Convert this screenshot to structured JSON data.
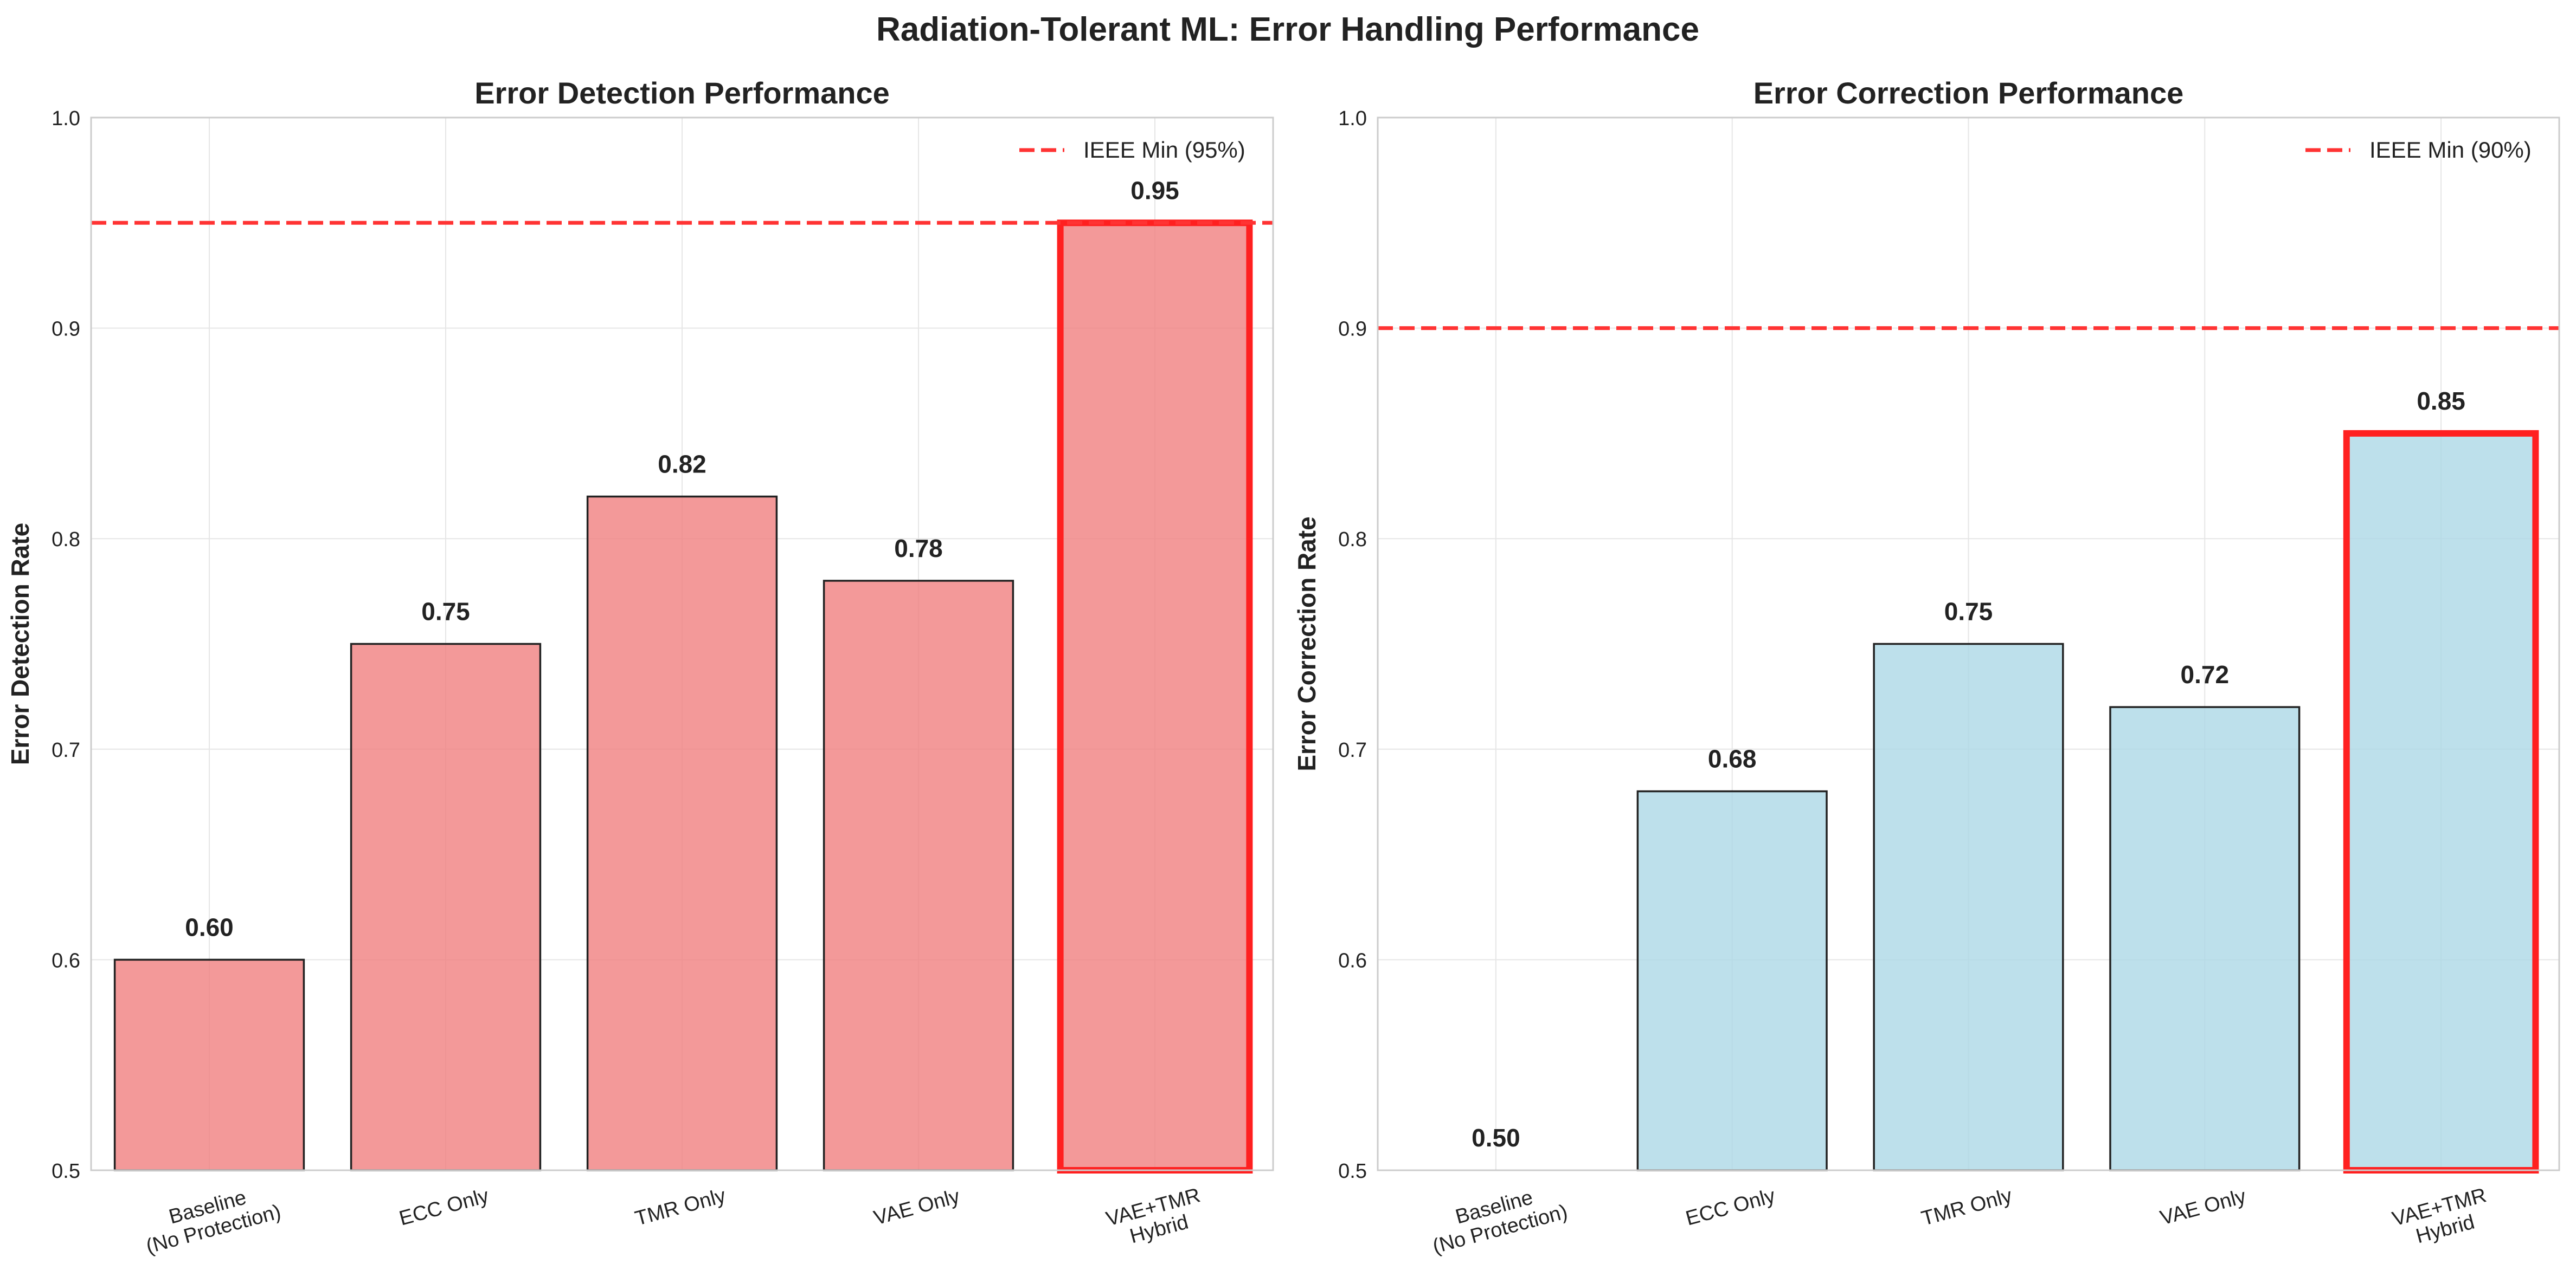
{
  "figure": {
    "suptitle": "Radiation-Tolerant ML: Error Handling Performance"
  },
  "chart_data": [
    {
      "type": "bar",
      "title": "Error Detection Performance",
      "xlabel": "",
      "ylabel": "Error Detection Rate",
      "categories": [
        "Baseline\n(No Protection)",
        "ECC Only",
        "TMR Only",
        "VAE Only",
        "VAE+TMR\nHybrid"
      ],
      "values": [
        0.6,
        0.75,
        0.82,
        0.78,
        0.95
      ],
      "value_labels": [
        "0.60",
        "0.75",
        "0.82",
        "0.78",
        "0.95"
      ],
      "highlight_index": 4,
      "bar_color": "#f08080",
      "highlight_edge_color": "#ff2020",
      "ylim": [
        0.5,
        1.0
      ],
      "yticks": [
        0.5,
        0.6,
        0.7,
        0.8,
        0.9,
        1.0
      ],
      "ytick_labels": [
        "0.5",
        "0.6",
        "0.7",
        "0.8",
        "0.9",
        "1.0"
      ],
      "threshold": {
        "value": 0.95,
        "label": "IEEE Min (95%)",
        "color": "#ff3333"
      },
      "grid": true,
      "legend_position": "top-right"
    },
    {
      "type": "bar",
      "title": "Error Correction Performance",
      "xlabel": "",
      "ylabel": "Error Correction Rate",
      "categories": [
        "Baseline\n(No Protection)",
        "ECC Only",
        "TMR Only",
        "VAE Only",
        "VAE+TMR\nHybrid"
      ],
      "values": [
        0.5,
        0.68,
        0.75,
        0.72,
        0.85
      ],
      "value_labels": [
        "0.50",
        "0.68",
        "0.75",
        "0.72",
        "0.85"
      ],
      "highlight_index": 4,
      "bar_color": "#add8e6",
      "highlight_edge_color": "#ff2020",
      "ylim": [
        0.5,
        1.0
      ],
      "yticks": [
        0.5,
        0.6,
        0.7,
        0.8,
        0.9,
        1.0
      ],
      "ytick_labels": [
        "0.5",
        "0.6",
        "0.7",
        "0.8",
        "0.9",
        "1.0"
      ],
      "threshold": {
        "value": 0.9,
        "label": "IEEE Min (90%)",
        "color": "#ff3333"
      },
      "grid": true,
      "legend_position": "top-right"
    }
  ]
}
